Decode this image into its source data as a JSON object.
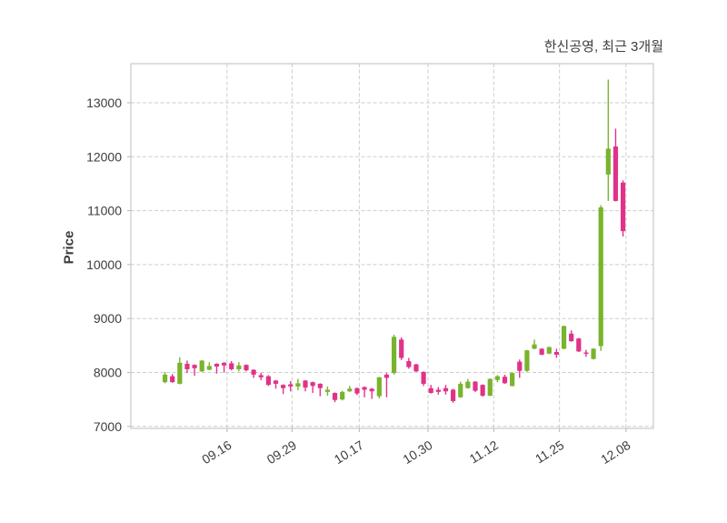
{
  "title": "한신공영, 최근 3개월",
  "chart_data": {
    "type": "candlestick",
    "title": "한신공영, 최근 3개월",
    "stock_name": "한신공영",
    "period_label": "최근 3개월",
    "ylabel": "Price",
    "grid": true,
    "legend": null,
    "yticks": [
      7000,
      8000,
      9000,
      10000,
      11000,
      12000,
      13000
    ],
    "ylim": [
      6963,
      13725
    ],
    "xlim": [
      -4.62,
      66.11
    ],
    "xticks": [
      {
        "label": "09.16",
        "index": 8.4
      },
      {
        "label": "09.29",
        "index": 17.2
      },
      {
        "label": "10.17",
        "index": 26.3
      },
      {
        "label": "10.30",
        "index": 35.6
      },
      {
        "label": "11.12",
        "index": 44.5
      },
      {
        "label": "11.25",
        "index": 53.4
      },
      {
        "label": "12.08",
        "index": 62.4
      }
    ],
    "colors": {
      "up": "#78b42d",
      "down": "#e13289",
      "grid": "#cdcdcd",
      "axis": "#c8c8c8",
      "tick": "#b5b5b5",
      "text": "#3d3d3d"
    },
    "candles_format": [
      "open",
      "high",
      "low",
      "close"
    ],
    "candles": [
      [
        7820,
        8010,
        7800,
        7960
      ],
      [
        7930,
        7970,
        7810,
        7820
      ],
      [
        7790,
        8280,
        7780,
        8180
      ],
      [
        8160,
        8220,
        7990,
        8060
      ],
      [
        8140,
        8150,
        7940,
        8080
      ],
      [
        8020,
        8230,
        8010,
        8220
      ],
      [
        8050,
        8190,
        8040,
        8120
      ],
      [
        8160,
        8170,
        7980,
        8110
      ],
      [
        8180,
        8190,
        8000,
        8130
      ],
      [
        8170,
        8210,
        8040,
        8060
      ],
      [
        8060,
        8190,
        8020,
        8130
      ],
      [
        8140,
        8150,
        8020,
        8040
      ],
      [
        8050,
        8060,
        7900,
        7960
      ],
      [
        7950,
        7990,
        7860,
        7910
      ],
      [
        7930,
        7950,
        7750,
        7770
      ],
      [
        7850,
        7860,
        7700,
        7790
      ],
      [
        7770,
        7780,
        7600,
        7710
      ],
      [
        7780,
        7840,
        7650,
        7740
      ],
      [
        7740,
        7880,
        7670,
        7800
      ],
      [
        7850,
        7860,
        7650,
        7720
      ],
      [
        7820,
        7830,
        7620,
        7750
      ],
      [
        7790,
        7800,
        7560,
        7710
      ],
      [
        7640,
        7740,
        7570,
        7680
      ],
      [
        7620,
        7630,
        7450,
        7490
      ],
      [
        7500,
        7660,
        7480,
        7640
      ],
      [
        7650,
        7750,
        7640,
        7700
      ],
      [
        7710,
        7720,
        7580,
        7610
      ],
      [
        7730,
        7740,
        7540,
        7680
      ],
      [
        7700,
        7710,
        7510,
        7650
      ],
      [
        7560,
        7920,
        7520,
        7910
      ],
      [
        7960,
        7990,
        7540,
        7900
      ],
      [
        7990,
        8700,
        7960,
        8660
      ],
      [
        8610,
        8650,
        8230,
        8270
      ],
      [
        8210,
        8270,
        8070,
        8100
      ],
      [
        8150,
        8160,
        8010,
        8020
      ],
      [
        8010,
        8020,
        7750,
        7790
      ],
      [
        7710,
        7770,
        7610,
        7620
      ],
      [
        7680,
        7730,
        7590,
        7640
      ],
      [
        7710,
        7770,
        7590,
        7650
      ],
      [
        7680,
        7700,
        7440,
        7470
      ],
      [
        7540,
        7830,
        7530,
        7790
      ],
      [
        7710,
        7880,
        7700,
        7830
      ],
      [
        7830,
        7840,
        7640,
        7660
      ],
      [
        7770,
        7780,
        7550,
        7570
      ],
      [
        7570,
        7890,
        7560,
        7880
      ],
      [
        7860,
        7950,
        7820,
        7930
      ],
      [
        7920,
        7960,
        7790,
        7800
      ],
      [
        7750,
        8000,
        7740,
        7990
      ],
      [
        8200,
        8240,
        7900,
        8030
      ],
      [
        8030,
        8420,
        8010,
        8410
      ],
      [
        8440,
        8610,
        8430,
        8520
      ],
      [
        8440,
        8450,
        8320,
        8330
      ],
      [
        8350,
        8480,
        8340,
        8470
      ],
      [
        8380,
        8440,
        8270,
        8330
      ],
      [
        8440,
        8870,
        8430,
        8860
      ],
      [
        8720,
        8780,
        8570,
        8580
      ],
      [
        8630,
        8640,
        8380,
        8390
      ],
      [
        8370,
        8420,
        8290,
        8350
      ],
      [
        8250,
        8450,
        8240,
        8440
      ],
      [
        8490,
        11100,
        8400,
        11060
      ],
      [
        11670,
        13430,
        11180,
        12150
      ],
      [
        12190,
        12520,
        11170,
        11180
      ],
      [
        11520,
        11560,
        10520,
        10620
      ]
    ]
  }
}
